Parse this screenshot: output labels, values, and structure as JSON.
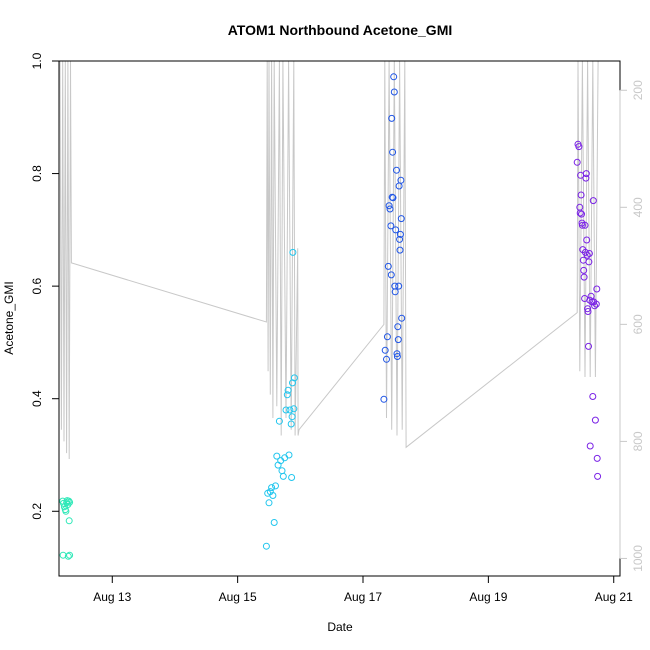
{
  "chart_data": {
    "type": "scatter",
    "title": "ATOM1 Northbound Acetone_GMI",
    "xlabel": "Date",
    "ylabel": "Acetone_GMI",
    "x_unit": "days",
    "x_range": [
      "Aug 12 00:00",
      "Aug 21 00:00"
    ],
    "x_ticks": [
      "Aug 13",
      "Aug 15",
      "Aug 17",
      "Aug 19",
      "Aug 21"
    ],
    "ylim": [
      0.1,
      1.0
    ],
    "y_ticks": [
      "0.2",
      "0.4",
      "0.6",
      "0.8",
      "1.0"
    ],
    "y2_label": "",
    "y2_ticks": [
      "200",
      "400",
      "600",
      "800",
      "1000"
    ],
    "y2_reversed": true,
    "grid": false,
    "colors": {
      "points_start": "#2fe8b8",
      "points_mid1": "#22c6ee",
      "points_mid2": "#1f55e6",
      "points_end": "#7a22e6",
      "pressure_line": "#c8c8c8"
    },
    "series": [
      {
        "color": "#2fe8b8",
        "points": [
          [
            "Aug 12 05:00",
            0.218
          ],
          [
            "Aug 12 05:20",
            0.214
          ],
          [
            "Aug 12 05:40",
            0.208
          ],
          [
            "Aug 12 06:00",
            0.203
          ],
          [
            "Aug 12 06:15",
            0.2
          ],
          [
            "Aug 12 06:30",
            0.215
          ],
          [
            "Aug 12 06:45",
            0.219
          ],
          [
            "Aug 12 07:00",
            0.212
          ],
          [
            "Aug 12 07:20",
            0.218
          ],
          [
            "Aug 12 07:30",
            0.183
          ],
          [
            "Aug 12 07:40",
            0.216
          ],
          [
            "Aug 12 05:10",
            0.122
          ],
          [
            "Aug 12 07:10",
            0.12
          ],
          [
            "Aug 12 07:40",
            0.122
          ]
        ]
      },
      {
        "color": "#22c6ee",
        "points": [
          [
            "Aug 15 11:00",
            0.138
          ],
          [
            "Aug 15 11:30",
            0.232
          ],
          [
            "Aug 15 12:00",
            0.215
          ],
          [
            "Aug 15 12:30",
            0.235
          ],
          [
            "Aug 15 13:00",
            0.242
          ],
          [
            "Aug 15 13:30",
            0.228
          ],
          [
            "Aug 15 14:00",
            0.18
          ],
          [
            "Aug 15 14:30",
            0.245
          ],
          [
            "Aug 15 15:00",
            0.298
          ],
          [
            "Aug 15 15:30",
            0.282
          ],
          [
            "Aug 15 16:00",
            0.36
          ],
          [
            "Aug 15 16:30",
            0.29
          ],
          [
            "Aug 15 17:00",
            0.272
          ],
          [
            "Aug 15 17:30",
            0.262
          ],
          [
            "Aug 15 18:00",
            0.295
          ],
          [
            "Aug 15 18:30",
            0.38
          ],
          [
            "Aug 15 19:00",
            0.407
          ],
          [
            "Aug 15 19:20",
            0.415
          ],
          [
            "Aug 15 19:40",
            0.3
          ],
          [
            "Aug 15 20:00",
            0.38
          ],
          [
            "Aug 15 20:30",
            0.355
          ],
          [
            "Aug 15 20:50",
            0.368
          ],
          [
            "Aug 15 21:00",
            0.428
          ],
          [
            "Aug 15 21:30",
            0.382
          ],
          [
            "Aug 15 21:45",
            0.437
          ],
          [
            "Aug 15 20:40",
            0.26
          ],
          [
            "Aug 15 21:10",
            0.66
          ]
        ]
      },
      {
        "color": "#1f55e6",
        "points": [
          [
            "Aug 17 08:00",
            0.399
          ],
          [
            "Aug 17 08:30",
            0.486
          ],
          [
            "Aug 17 09:00",
            0.47
          ],
          [
            "Aug 17 09:20",
            0.51
          ],
          [
            "Aug 17 09:40",
            0.635
          ],
          [
            "Aug 17 10:00",
            0.743
          ],
          [
            "Aug 17 10:20",
            0.737
          ],
          [
            "Aug 17 10:40",
            0.707
          ],
          [
            "Aug 17 10:50",
            0.62
          ],
          [
            "Aug 17 11:00",
            0.898
          ],
          [
            "Aug 17 11:10",
            0.758
          ],
          [
            "Aug 17 11:20",
            0.838
          ],
          [
            "Aug 17 11:30",
            0.757
          ],
          [
            "Aug 17 11:45",
            0.972
          ],
          [
            "Aug 17 12:00",
            0.945
          ],
          [
            "Aug 17 12:10",
            0.6
          ],
          [
            "Aug 17 12:20",
            0.59
          ],
          [
            "Aug 17 12:30",
            0.7
          ],
          [
            "Aug 17 12:50",
            0.806
          ],
          [
            "Aug 17 13:00",
            0.48
          ],
          [
            "Aug 17 13:10",
            0.475
          ],
          [
            "Aug 17 13:20",
            0.528
          ],
          [
            "Aug 17 13:30",
            0.505
          ],
          [
            "Aug 17 13:40",
            0.6
          ],
          [
            "Aug 17 13:50",
            0.778
          ],
          [
            "Aug 17 14:00",
            0.683
          ],
          [
            "Aug 17 14:10",
            0.664
          ],
          [
            "Aug 17 14:20",
            0.692
          ],
          [
            "Aug 17 14:30",
            0.788
          ],
          [
            "Aug 17 14:40",
            0.72
          ],
          [
            "Aug 17 14:50",
            0.543
          ]
        ]
      },
      {
        "color": "#7a22e6",
        "points": [
          [
            "Aug 20 10:00",
            0.82
          ],
          [
            "Aug 20 10:20",
            0.852
          ],
          [
            "Aug 20 10:40",
            0.848
          ],
          [
            "Aug 20 11:00",
            0.74
          ],
          [
            "Aug 20 11:10",
            0.73
          ],
          [
            "Aug 20 11:20",
            0.797
          ],
          [
            "Aug 20 11:30",
            0.762
          ],
          [
            "Aug 20 11:40",
            0.728
          ],
          [
            "Aug 20 11:50",
            0.712
          ],
          [
            "Aug 20 12:00",
            0.708
          ],
          [
            "Aug 20 12:10",
            0.665
          ],
          [
            "Aug 20 12:20",
            0.646
          ],
          [
            "Aug 20 12:30",
            0.628
          ],
          [
            "Aug 20 12:40",
            0.616
          ],
          [
            "Aug 20 12:50",
            0.578
          ],
          [
            "Aug 20 13:00",
            0.708
          ],
          [
            "Aug 20 13:10",
            0.66
          ],
          [
            "Aug 20 13:20",
            0.792
          ],
          [
            "Aug 20 13:30",
            0.8
          ],
          [
            "Aug 20 13:40",
            0.682
          ],
          [
            "Aug 20 13:50",
            0.655
          ],
          [
            "Aug 20 14:00",
            0.56
          ],
          [
            "Aug 20 14:10",
            0.555
          ],
          [
            "Aug 20 14:20",
            0.493
          ],
          [
            "Aug 20 14:30",
            0.643
          ],
          [
            "Aug 20 14:40",
            0.658
          ],
          [
            "Aug 20 14:50",
            0.575
          ],
          [
            "Aug 20 15:00",
            0.316
          ],
          [
            "Aug 20 15:20",
            0.582
          ],
          [
            "Aug 20 15:40",
            0.572
          ],
          [
            "Aug 20 16:00",
            0.404
          ],
          [
            "Aug 20 16:10",
            0.752
          ],
          [
            "Aug 20 16:20",
            0.572
          ],
          [
            "Aug 20 16:40",
            0.565
          ],
          [
            "Aug 20 17:00",
            0.362
          ],
          [
            "Aug 20 17:20",
            0.568
          ],
          [
            "Aug 20 17:30",
            0.595
          ],
          [
            "Aug 20 17:40",
            0.294
          ],
          [
            "Aug 20 17:50",
            0.262
          ]
        ]
      }
    ],
    "pressure_series": {
      "color": "#c8c8c8",
      "axis": "y2",
      "points": [
        [
          "Aug 12 04:00",
          150
        ],
        [
          "Aug 12 04:30",
          780
        ],
        [
          "Aug 12 05:00",
          150
        ],
        [
          "Aug 12 05:30",
          800
        ],
        [
          "Aug 12 06:00",
          150
        ],
        [
          "Aug 12 06:30",
          820
        ],
        [
          "Aug 12 07:00",
          150
        ],
        [
          "Aug 12 07:30",
          830
        ],
        [
          "Aug 12 08:00",
          150
        ],
        [
          "Aug 12 08:20",
          495
        ],
        [
          "Aug 15 11:00",
          596
        ],
        [
          "Aug 15 11:20",
          150
        ],
        [
          "Aug 15 11:40",
          680
        ],
        [
          "Aug 15 12:00",
          150
        ],
        [
          "Aug 15 12:30",
          720
        ],
        [
          "Aug 15 13:00",
          150
        ],
        [
          "Aug 15 13:30",
          760
        ],
        [
          "Aug 15 14:00",
          150
        ],
        [
          "Aug 15 15:00",
          740
        ],
        [
          "Aug 15 16:00",
          150
        ],
        [
          "Aug 15 16:40",
          790
        ],
        [
          "Aug 15 17:20",
          150
        ],
        [
          "Aug 15 18:30",
          760
        ],
        [
          "Aug 15 19:30",
          150
        ],
        [
          "Aug 15 20:30",
          780
        ],
        [
          "Aug 15 21:30",
          150
        ],
        [
          "Aug 15 22:00",
          790
        ],
        [
          "Aug 15 23:00",
          470
        ],
        [
          "Aug 15 23:10",
          790
        ],
        [
          "Aug 15 23:30",
          780
        ],
        [
          "Aug 17 08:00",
          600
        ],
        [
          "Aug 17 08:20",
          150
        ],
        [
          "Aug 17 09:00",
          760
        ],
        [
          "Aug 17 10:00",
          150
        ],
        [
          "Aug 17 11:00",
          780
        ],
        [
          "Aug 17 12:00",
          150
        ],
        [
          "Aug 17 13:00",
          790
        ],
        [
          "Aug 17 14:00",
          150
        ],
        [
          "Aug 17 15:00",
          780
        ],
        [
          "Aug 17 16:00",
          150
        ],
        [
          "Aug 17 16:30",
          810
        ],
        [
          "Aug 20 10:00",
          580
        ],
        [
          "Aug 20 10:20",
          150
        ],
        [
          "Aug 20 11:00",
          680
        ],
        [
          "Aug 20 12:00",
          150
        ],
        [
          "Aug 20 13:00",
          690
        ],
        [
          "Aug 20 14:00",
          150
        ],
        [
          "Aug 20 15:00",
          690
        ],
        [
          "Aug 20 16:00",
          150
        ],
        [
          "Aug 20 17:00",
          690
        ],
        [
          "Aug 20 18:00",
          150
        ]
      ]
    }
  }
}
